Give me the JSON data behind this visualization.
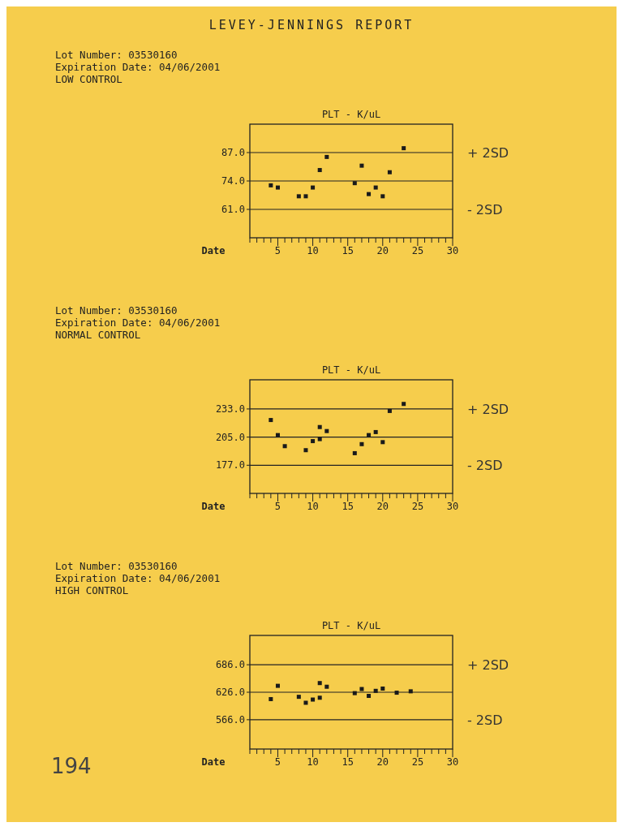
{
  "chart_data": [
    {
      "type": "scatter",
      "subtitle": "LEVEY-JENNINGS REPORT",
      "title": "PLT - K/uL",
      "xlabel": "Date",
      "marker": "square",
      "annotations": [
        "Lot Number:  03530160",
        "Expiration Date: 04/06/2001",
        "LOW CONTROL"
      ],
      "xlim": [
        1,
        30
      ],
      "xticks": [
        {
          "value": 1,
          "label": null
        },
        {
          "value": 2,
          "label": null
        },
        {
          "value": 3,
          "label": null
        },
        {
          "value": 4,
          "label": null
        },
        5,
        {
          "value": 6,
          "label": null
        },
        {
          "value": 7,
          "label": null
        },
        {
          "value": 8,
          "label": null
        },
        {
          "value": 9,
          "label": null
        },
        10,
        {
          "value": 11,
          "label": null
        },
        {
          "value": 12,
          "label": null
        },
        {
          "value": 13,
          "label": null
        },
        {
          "value": 14,
          "label": null
        },
        15,
        {
          "value": 16,
          "label": null
        },
        {
          "value": 17,
          "label": null
        },
        {
          "value": 18,
          "label": null
        },
        {
          "value": 19,
          "label": null
        },
        20,
        {
          "value": 21,
          "label": null
        },
        {
          "value": 22,
          "label": null
        },
        {
          "value": 23,
          "label": null
        },
        {
          "value": 24,
          "label": null
        },
        25,
        {
          "value": 26,
          "label": null
        },
        {
          "value": 27,
          "label": null
        },
        {
          "value": 28,
          "label": null
        },
        {
          "value": 29,
          "label": null
        },
        30
      ],
      "ylim": [
        48,
        100
      ],
      "yticks": [
        {
          "value": 61,
          "label": "61.0"
        },
        {
          "value": 74,
          "label": "74.0"
        },
        {
          "value": 87,
          "label": "87.0"
        }
      ],
      "ref_lines": [
        {
          "axis": "y",
          "value": 87,
          "label": "+ 2SD"
        },
        {
          "axis": "y",
          "value": 74
        },
        {
          "axis": "y",
          "value": 61,
          "label": "- 2SD"
        }
      ],
      "series": [
        {
          "color": "#1a1a1a",
          "x": [
            4,
            5,
            8,
            9,
            10,
            11,
            12,
            16,
            17,
            18,
            19,
            20,
            21,
            23
          ],
          "values": [
            72,
            71,
            67,
            67,
            71,
            79,
            85,
            73,
            81,
            68,
            71,
            67,
            78,
            89
          ]
        }
      ]
    },
    {
      "type": "scatter",
      "title": "PLT - K/uL",
      "xlabel": "Date",
      "marker": "square",
      "annotations": [
        "Lot Number:  03530160",
        "Expiration Date: 04/06/2001",
        "NORMAL CONTROL"
      ],
      "xlim": [
        1,
        30
      ],
      "xticks": [
        {
          "value": 1,
          "label": null
        },
        {
          "value": 2,
          "label": null
        },
        {
          "value": 3,
          "label": null
        },
        {
          "value": 4,
          "label": null
        },
        5,
        {
          "value": 6,
          "label": null
        },
        {
          "value": 7,
          "label": null
        },
        {
          "value": 8,
          "label": null
        },
        {
          "value": 9,
          "label": null
        },
        10,
        {
          "value": 11,
          "label": null
        },
        {
          "value": 12,
          "label": null
        },
        {
          "value": 13,
          "label": null
        },
        {
          "value": 14,
          "label": null
        },
        15,
        {
          "value": 16,
          "label": null
        },
        {
          "value": 17,
          "label": null
        },
        {
          "value": 18,
          "label": null
        },
        {
          "value": 19,
          "label": null
        },
        20,
        {
          "value": 21,
          "label": null
        },
        {
          "value": 22,
          "label": null
        },
        {
          "value": 23,
          "label": null
        },
        {
          "value": 24,
          "label": null
        },
        25,
        {
          "value": 26,
          "label": null
        },
        {
          "value": 27,
          "label": null
        },
        {
          "value": 28,
          "label": null
        },
        {
          "value": 29,
          "label": null
        },
        30
      ],
      "ylim": [
        149,
        262
      ],
      "yticks": [
        {
          "value": 177,
          "label": "177.0"
        },
        {
          "value": 205,
          "label": "205.0"
        },
        {
          "value": 233,
          "label": "233.0"
        }
      ],
      "ref_lines": [
        {
          "axis": "y",
          "value": 233,
          "label": "+ 2SD"
        },
        {
          "axis": "y",
          "value": 205
        },
        {
          "axis": "y",
          "value": 177,
          "label": "- 2SD"
        }
      ],
      "series": [
        {
          "color": "#1a1a1a",
          "x": [
            4,
            5,
            6,
            9,
            10,
            11,
            11,
            12,
            16,
            17,
            18,
            19,
            20,
            21,
            23
          ],
          "values": [
            222,
            207,
            196,
            192,
            201,
            215,
            203,
            211,
            189,
            198,
            207,
            210,
            200,
            231,
            238
          ]
        }
      ]
    },
    {
      "type": "scatter",
      "title": "PLT - K/uL",
      "xlabel": "Date",
      "marker": "square",
      "annotations": [
        "Lot Number:  03530160",
        "Expiration Date: 04/06/2001",
        "HIGH CONTROL",
        "194"
      ],
      "xlim": [
        1,
        30
      ],
      "xticks": [
        {
          "value": 1,
          "label": null
        },
        {
          "value": 2,
          "label": null
        },
        {
          "value": 3,
          "label": null
        },
        {
          "value": 4,
          "label": null
        },
        5,
        {
          "value": 6,
          "label": null
        },
        {
          "value": 7,
          "label": null
        },
        {
          "value": 8,
          "label": null
        },
        {
          "value": 9,
          "label": null
        },
        10,
        {
          "value": 11,
          "label": null
        },
        {
          "value": 12,
          "label": null
        },
        {
          "value": 13,
          "label": null
        },
        {
          "value": 14,
          "label": null
        },
        15,
        {
          "value": 16,
          "label": null
        },
        {
          "value": 17,
          "label": null
        },
        {
          "value": 18,
          "label": null
        },
        {
          "value": 19,
          "label": null
        },
        20,
        {
          "value": 21,
          "label": null
        },
        {
          "value": 22,
          "label": null
        },
        {
          "value": 23,
          "label": null
        },
        {
          "value": 24,
          "label": null
        },
        25,
        {
          "value": 26,
          "label": null
        },
        {
          "value": 27,
          "label": null
        },
        {
          "value": 28,
          "label": null
        },
        {
          "value": 29,
          "label": null
        },
        30
      ],
      "ylim": [
        502,
        750
      ],
      "yticks": [
        {
          "value": 566,
          "label": "566.0"
        },
        {
          "value": 626,
          "label": "626.0"
        },
        {
          "value": 686,
          "label": "686.0"
        }
      ],
      "ref_lines": [
        {
          "axis": "y",
          "value": 686,
          "label": "+ 2SD"
        },
        {
          "axis": "y",
          "value": 626
        },
        {
          "axis": "y",
          "value": 566,
          "label": "- 2SD"
        }
      ],
      "series": [
        {
          "color": "#1a1a1a",
          "x": [
            4,
            5,
            8,
            9,
            10,
            11,
            11,
            12,
            16,
            17,
            18,
            19,
            20,
            22,
            24
          ],
          "values": [
            611,
            640,
            616,
            603,
            610,
            614,
            646,
            638,
            624,
            633,
            618,
            629,
            634,
            625,
            628
          ]
        }
      ]
    }
  ]
}
